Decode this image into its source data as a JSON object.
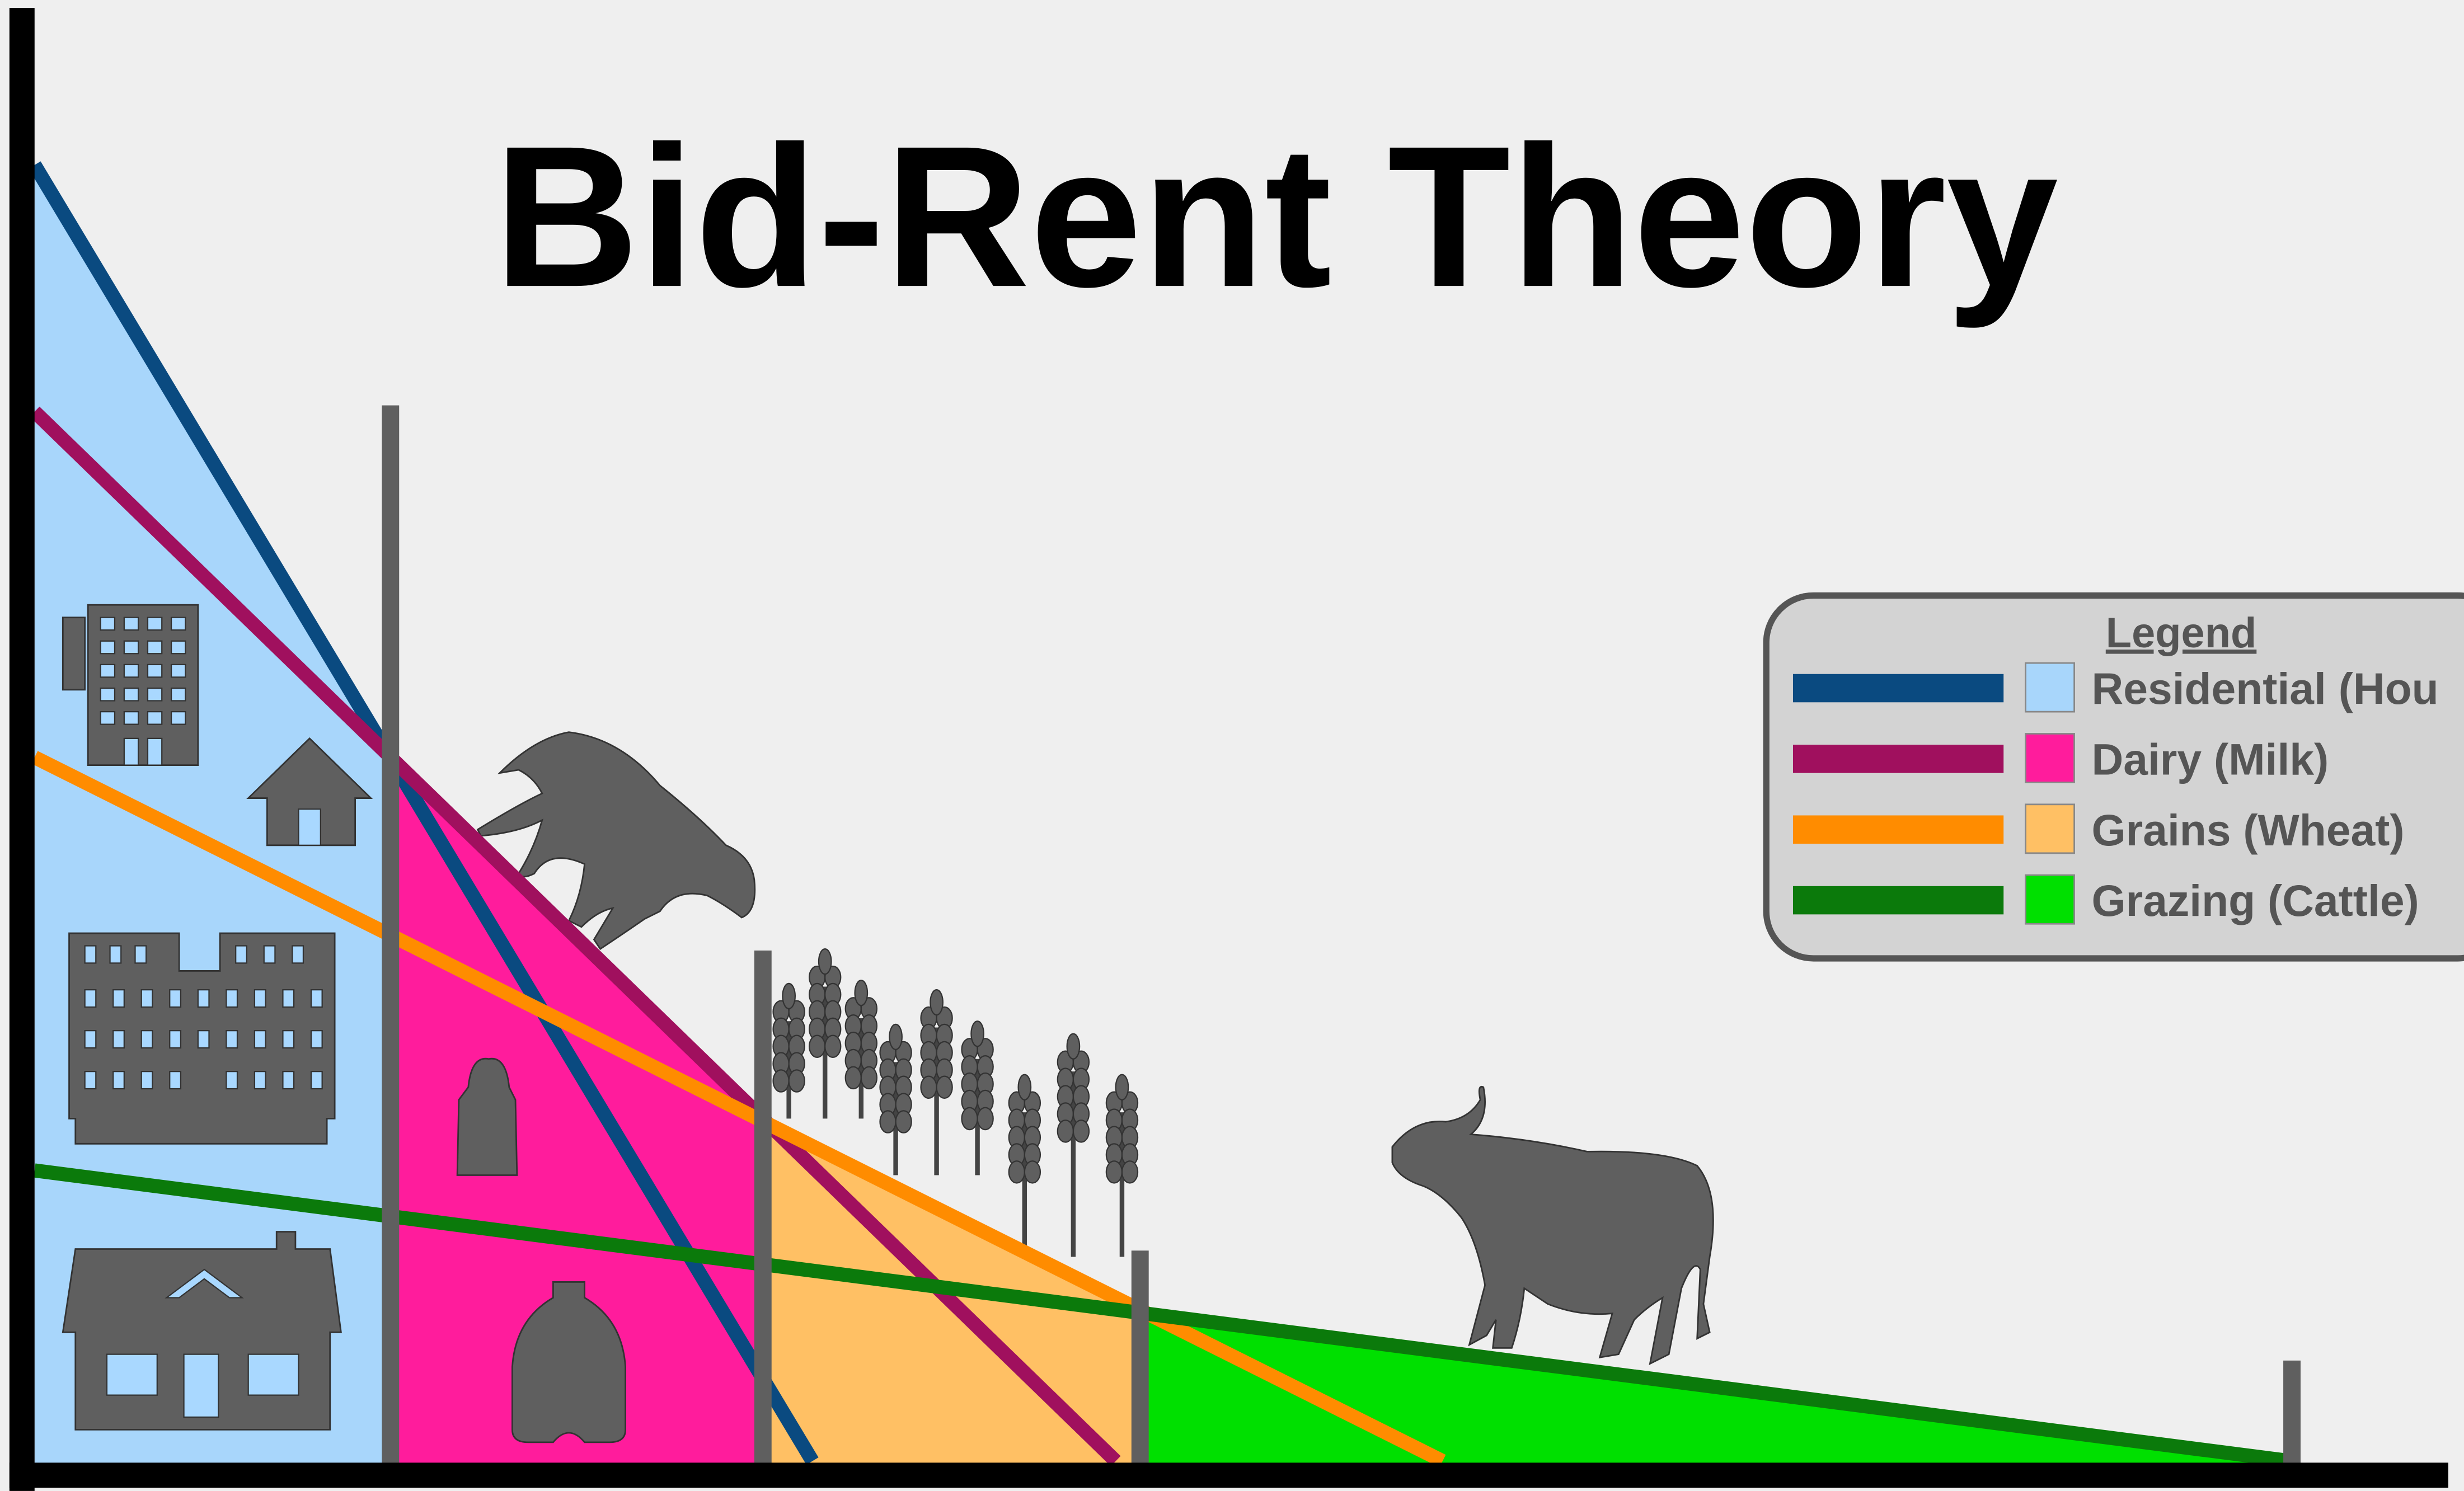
{
  "title": "Bid-Rent Theory",
  "legend": {
    "title": "Legend",
    "items": [
      {
        "label": "Residential (Hou",
        "line_color": "#0a4a80",
        "fill_color": "#a8d6fb"
      },
      {
        "label": "Dairy (Milk)",
        "line_color": "#a0105e",
        "fill_color": "#ff1c9c"
      },
      {
        "label": "Grains (Wheat)",
        "line_color": "#ff8c00",
        "fill_color": "#ffc064"
      },
      {
        "label": "Grazing (Cattle)",
        "line_color": "#0b7a0b",
        "fill_color": "#00e000"
      }
    ]
  }
}
